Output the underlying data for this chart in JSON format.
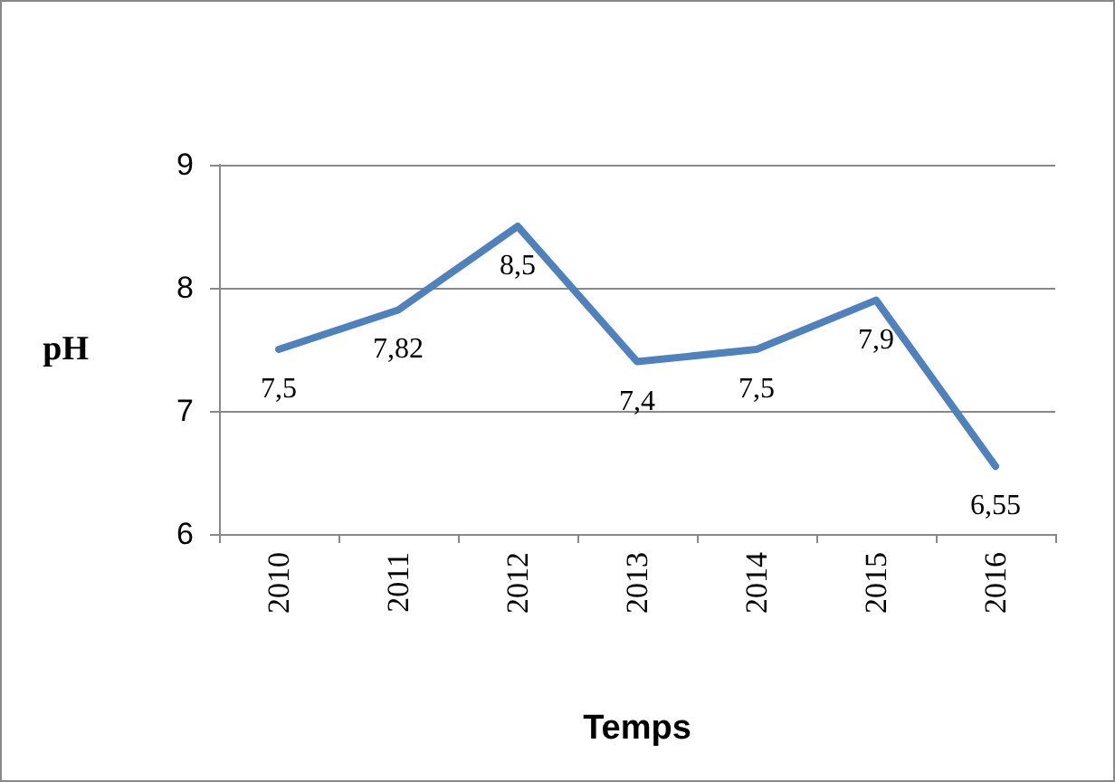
{
  "chart_data": {
    "type": "line",
    "xlabel": "Temps",
    "ylabel": "pH",
    "categories": [
      "2010",
      "2011",
      "2012",
      "2013",
      "2014",
      "2015",
      "2016"
    ],
    "series": [
      {
        "color": "#4f81bd",
        "values": [
          7.5,
          7.82,
          8.5,
          7.4,
          7.5,
          7.9,
          6.55
        ],
        "value_labels": [
          "7,5",
          "7,82",
          "8,5",
          "7,4",
          "7,5",
          "7,9",
          "6,55"
        ]
      }
    ],
    "ylim": [
      6,
      9
    ],
    "yticks": [
      6,
      7,
      8,
      9
    ],
    "grid": "y",
    "marker": "none",
    "line_style": "solid"
  }
}
